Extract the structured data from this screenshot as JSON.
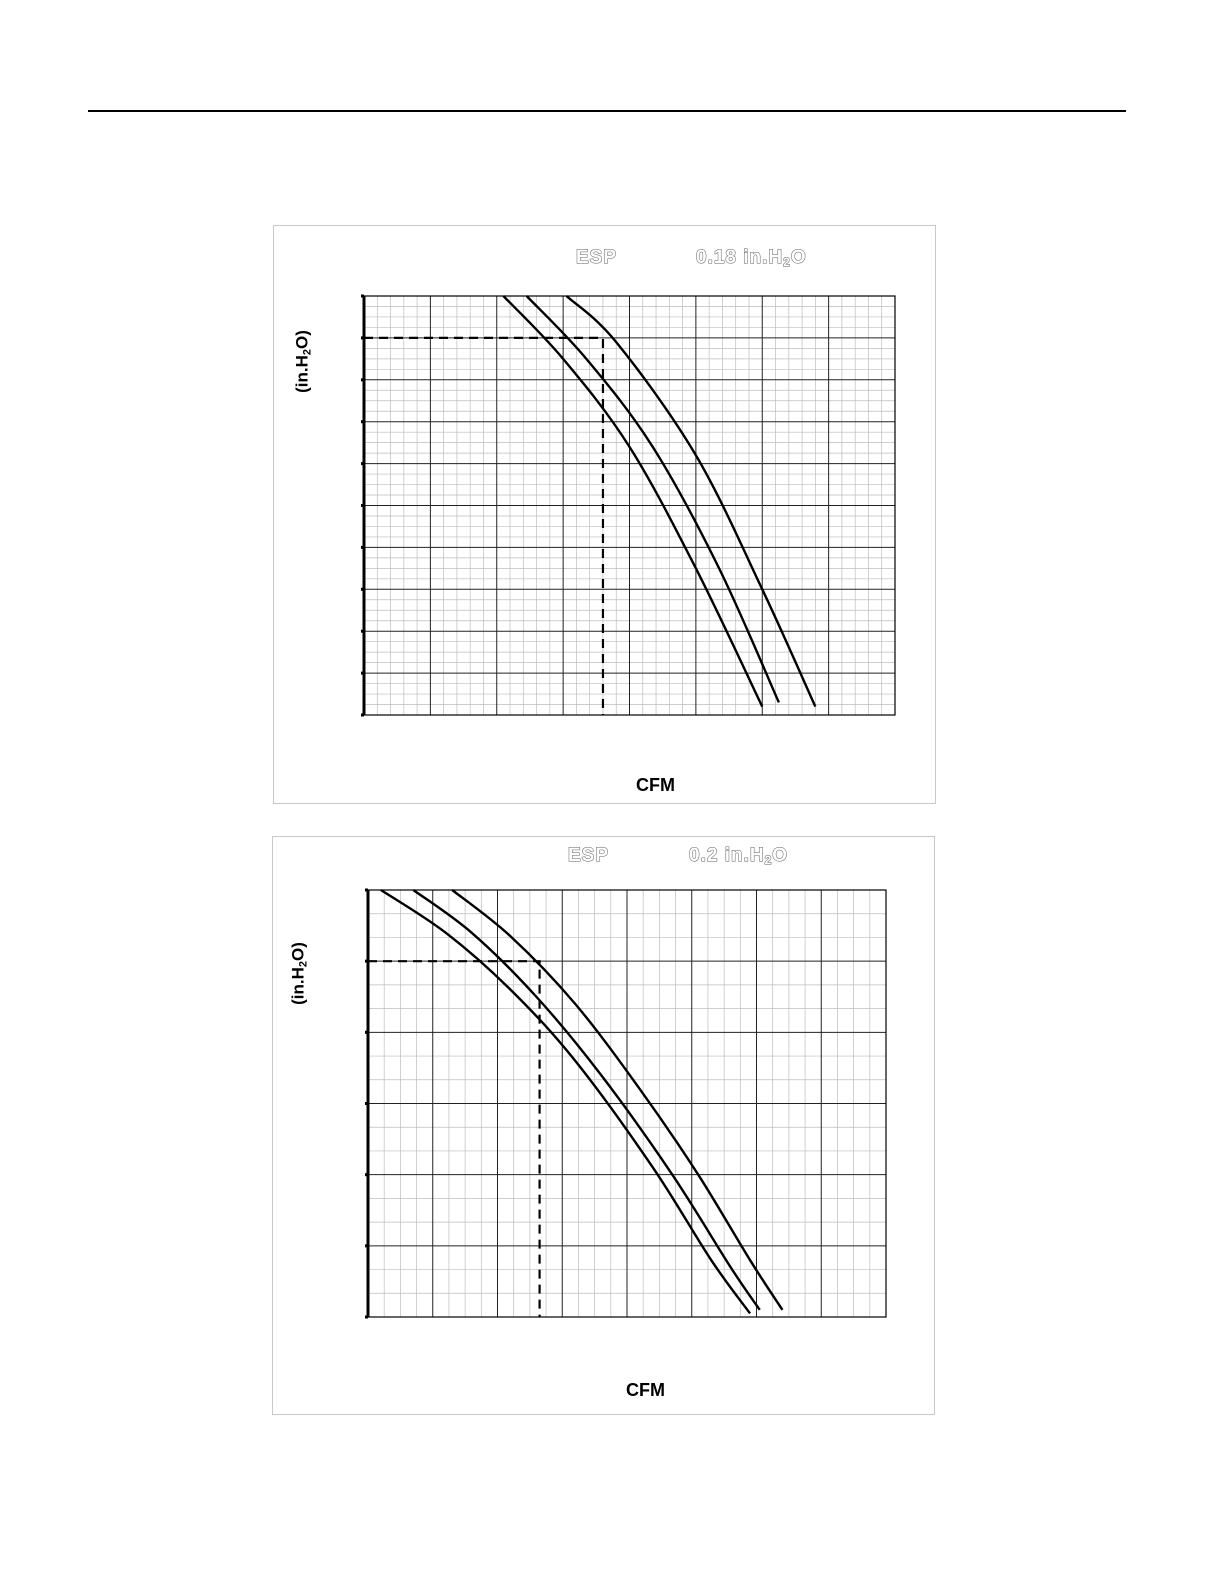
{
  "page": {
    "rule": true
  },
  "chart_data": [
    {
      "type": "line",
      "esp_label": "ESP",
      "esp_value": "0.18 in.H",
      "esp_sub": "2",
      "esp_suffix": "O",
      "xlabel": "CFM",
      "ylabel_prefix": "(in.H",
      "ylabel_sub": "2",
      "ylabel_suffix": "O)",
      "xlim": [
        0,
        8
      ],
      "ylim": [
        0,
        10
      ],
      "grid": true,
      "major_x": 8,
      "minor_x_per_major": 5,
      "major_y": 10,
      "minor_y_per_major": 4,
      "series": [
        {
          "points": [
            [
              2.1,
              10
            ],
            [
              3.0,
              8.5
            ],
            [
              4.0,
              6.4
            ],
            [
              5.0,
              3.5
            ],
            [
              6.0,
              0.2
            ]
          ]
        },
        {
          "points": [
            [
              2.45,
              10
            ],
            [
              3.35,
              8.5
            ],
            [
              4.35,
              6.4
            ],
            [
              5.35,
              3.5
            ],
            [
              6.25,
              0.3
            ]
          ]
        },
        {
          "points": [
            [
              3.05,
              10
            ],
            [
              3.8,
              8.9
            ],
            [
              5.0,
              6.2
            ],
            [
              6.0,
              3.0
            ],
            [
              6.8,
              0.2
            ]
          ]
        }
      ],
      "operating_point": {
        "x": 3.6,
        "y": 9.0
      }
    },
    {
      "type": "line",
      "esp_label": "ESP",
      "esp_value": "0.2 in.H",
      "esp_sub": "2",
      "esp_suffix": "O",
      "xlabel": "CFM",
      "ylabel_prefix": "(in.H",
      "ylabel_sub": "2",
      "ylabel_suffix": "O)",
      "xlim": [
        0,
        8
      ],
      "ylim": [
        0,
        6
      ],
      "grid": true,
      "major_x": 8,
      "minor_x_per_major": 4,
      "major_y": 6,
      "minor_y_per_major": 3,
      "series": [
        {
          "points": [
            [
              0.2,
              6
            ],
            [
              1.2,
              5.4
            ],
            [
              2.2,
              4.6
            ],
            [
              3.2,
              3.6
            ],
            [
              4.4,
              2.1
            ],
            [
              5.3,
              0.8
            ],
            [
              5.9,
              0.05
            ]
          ]
        },
        {
          "points": [
            [
              0.7,
              6
            ],
            [
              1.6,
              5.4
            ],
            [
              2.6,
              4.5
            ],
            [
              3.6,
              3.4
            ],
            [
              4.7,
              2.0
            ],
            [
              5.6,
              0.7
            ],
            [
              6.05,
              0.1
            ]
          ]
        },
        {
          "points": [
            [
              1.3,
              6
            ],
            [
              2.2,
              5.35
            ],
            [
              3.2,
              4.4
            ],
            [
              4.2,
              3.2
            ],
            [
              5.1,
              2.0
            ],
            [
              5.9,
              0.8
            ],
            [
              6.4,
              0.1
            ]
          ]
        }
      ],
      "operating_point": {
        "x": 2.65,
        "y": 5.0
      }
    }
  ]
}
